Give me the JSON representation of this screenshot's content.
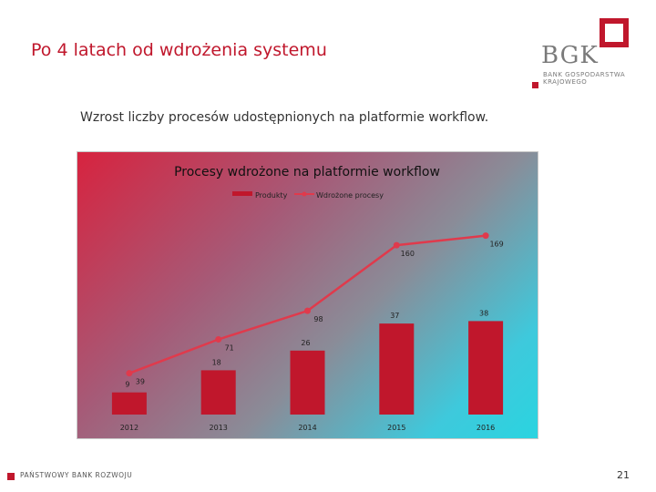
{
  "slide": {
    "title": "Po 4 latach od wdrożenia systemu",
    "subtitle": "Wzrost liczby procesów udostępnionych na platformie workflow.",
    "page_number": "21",
    "footer": "PAŃSTWOWY BANK ROZWOJU"
  },
  "logo": {
    "name": "BGK",
    "line1": "BANK GOSPODARSTWA",
    "line2": "KRAJOWEGO",
    "accent": "#c0172c"
  },
  "chart_data": {
    "type": "bar",
    "title": "Procesy wdrożone na platformie workflow",
    "categories": [
      "2012",
      "2013",
      "2014",
      "2015",
      "2016"
    ],
    "series": [
      {
        "name": "Produkty",
        "type": "bar",
        "color": "#c0172c",
        "values": [
          9,
          18,
          26,
          37,
          38
        ]
      },
      {
        "name": "Wdrożone procesy",
        "type": "line",
        "color": "#e03a4c",
        "values": [
          39,
          71,
          98,
          160,
          169
        ]
      }
    ],
    "bar_axis_max": 50,
    "line_axis_max": 210,
    "legend_position": "top",
    "grid": false
  }
}
